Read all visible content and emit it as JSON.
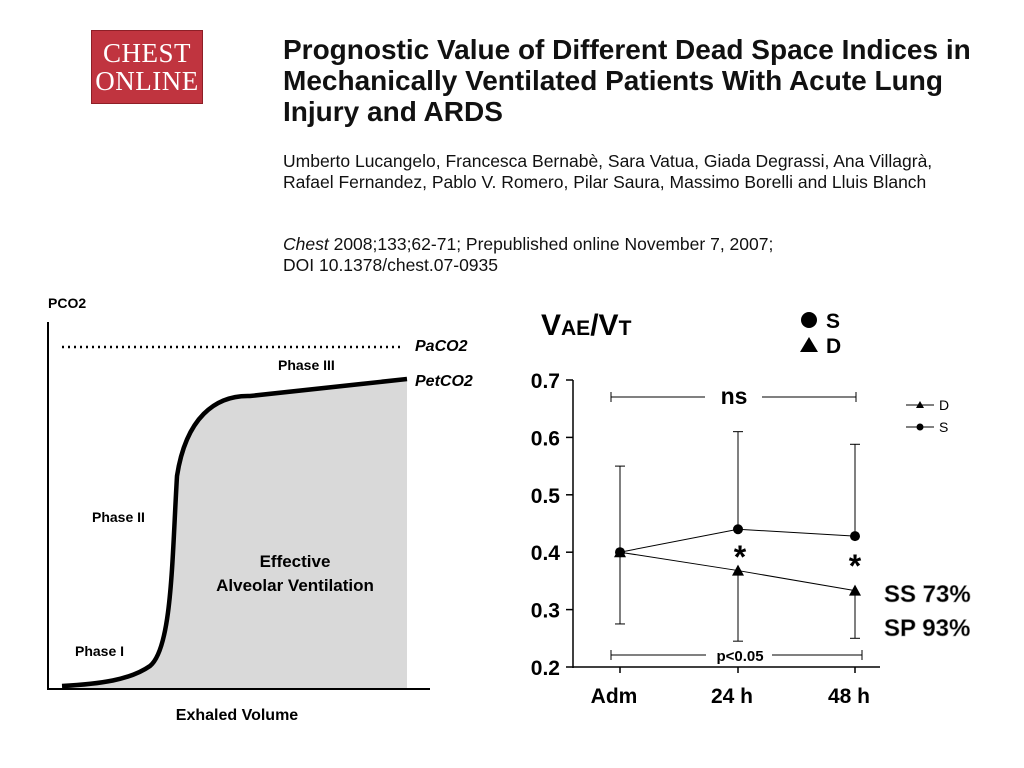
{
  "header": {
    "logo_line1": "CHEST",
    "logo_line2": "ONLINE",
    "title": "Prognostic Value of Different Dead Space Indices in Mechanically Ventilated Patients With Acute Lung Injury and ARDS",
    "authors": "Umberto Lucangelo, Francesca Bernabè, Sara Vatua, Giada Degrassi, Ana Villagrà, Rafael Fernandez, Pablo V. Romero, Pilar Saura, Massimo Borelli and Lluis Blanch",
    "citation_journal": "Chest",
    "citation_rest": " 2008;133;62-71; Prepublished online November 7, 2007;",
    "citation_doi": "DOI 10.1378/chest.07-0935"
  },
  "chart_data": [
    {
      "type": "diagram",
      "ylabel": "PCO2",
      "xlabel": "Exhaled Volume",
      "labels": {
        "paco2": "PaCO2",
        "petco2": "PetCO2",
        "phase1": "Phase I",
        "phase2": "Phase II",
        "phase3": "Phase III",
        "area_line1": "Effective",
        "area_line2": "Alveolar Ventilation"
      },
      "area_color": "#d9d9d9"
    },
    {
      "type": "line",
      "title_main": "V",
      "title_sub1": "AE",
      "title_mid": "/V",
      "title_sub2": "T",
      "categories": [
        "Adm",
        "24 h",
        "48 h"
      ],
      "ylim": [
        0.2,
        0.7
      ],
      "yticks": [
        "0.7",
        "0.6",
        "0.5",
        "0.4",
        "0.3",
        "0.2"
      ],
      "series": [
        {
          "name": "S",
          "marker": "circle",
          "values": [
            0.4,
            0.44,
            0.428
          ],
          "error_upper": [
            0.55,
            0.61,
            0.588
          ],
          "error_lower": [
            0.275,
            null,
            null
          ]
        },
        {
          "name": "D",
          "marker": "triangle",
          "values": [
            0.4,
            0.368,
            0.333
          ],
          "error_upper": [
            null,
            null,
            null
          ],
          "error_lower": [
            null,
            0.245,
            0.25
          ]
        }
      ],
      "legend_main": {
        "s": "S",
        "d": "D"
      },
      "legend_small": {
        "d": "D",
        "s": "S"
      },
      "annotations": {
        "ns": "ns",
        "star1": "*",
        "star2": "*",
        "p": "p<0.05",
        "ss": "SS 73%",
        "sp": "SP 93%"
      }
    }
  ]
}
